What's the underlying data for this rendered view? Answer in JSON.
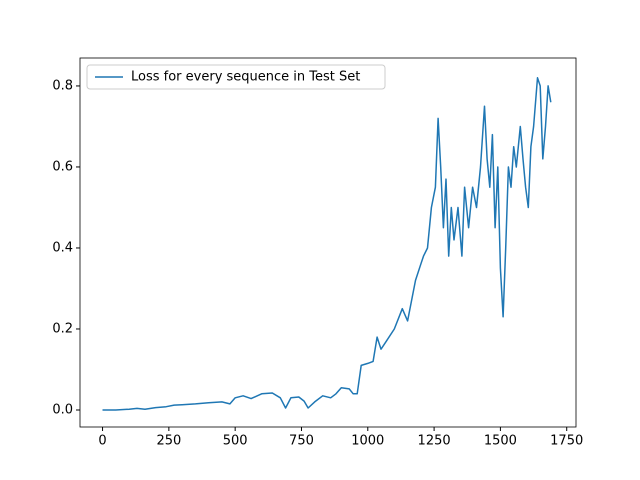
{
  "chart_data": {
    "type": "line",
    "x": [
      0,
      50,
      100,
      130,
      160,
      200,
      240,
      270,
      300,
      350,
      400,
      450,
      480,
      500,
      530,
      560,
      600,
      640,
      670,
      690,
      710,
      740,
      760,
      775,
      800,
      830,
      860,
      880,
      900,
      930,
      945,
      960,
      975,
      1000,
      1020,
      1035,
      1050,
      1070,
      1100,
      1130,
      1150,
      1180,
      1200,
      1210,
      1225,
      1240,
      1255,
      1265,
      1275,
      1285,
      1295,
      1305,
      1315,
      1325,
      1340,
      1355,
      1365,
      1380,
      1395,
      1410,
      1425,
      1440,
      1450,
      1460,
      1470,
      1480,
      1490,
      1500,
      1510,
      1520,
      1530,
      1540,
      1550,
      1560,
      1575,
      1585,
      1595,
      1605,
      1615,
      1625,
      1640,
      1650,
      1660,
      1670,
      1680,
      1690
    ],
    "series": [
      {
        "name": "Loss for every sequence in Test Set",
        "color": "#1f77b4",
        "values": [
          0,
          0,
          0.002,
          0.004,
          0.002,
          0.006,
          0.008,
          0.012,
          0.013,
          0.015,
          0.018,
          0.02,
          0.015,
          0.03,
          0.035,
          0.028,
          0.04,
          0.042,
          0.03,
          0.005,
          0.03,
          0.032,
          0.022,
          0.005,
          0.02,
          0.035,
          0.03,
          0.04,
          0.055,
          0.052,
          0.04,
          0.04,
          0.11,
          0.115,
          0.12,
          0.18,
          0.15,
          0.17,
          0.2,
          0.25,
          0.22,
          0.32,
          0.36,
          0.38,
          0.4,
          0.5,
          0.55,
          0.72,
          0.6,
          0.45,
          0.57,
          0.38,
          0.5,
          0.42,
          0.5,
          0.38,
          0.55,
          0.45,
          0.55,
          0.5,
          0.6,
          0.75,
          0.62,
          0.55,
          0.68,
          0.45,
          0.6,
          0.35,
          0.23,
          0.4,
          0.6,
          0.55,
          0.65,
          0.6,
          0.7,
          0.62,
          0.55,
          0.5,
          0.65,
          0.7,
          0.82,
          0.8,
          0.62,
          0.7,
          0.8,
          0.76
        ]
      }
    ],
    "xlim": [
      -85,
      1785
    ],
    "ylim": [
      -0.042,
      0.869
    ],
    "xticks": [
      0,
      250,
      500,
      750,
      1000,
      1250,
      1500,
      1750
    ],
    "yticks": [
      {
        "value": 0,
        "label": "0.0"
      },
      0.2,
      0.4,
      0.6,
      0.8
    ],
    "legend": "upper left"
  }
}
